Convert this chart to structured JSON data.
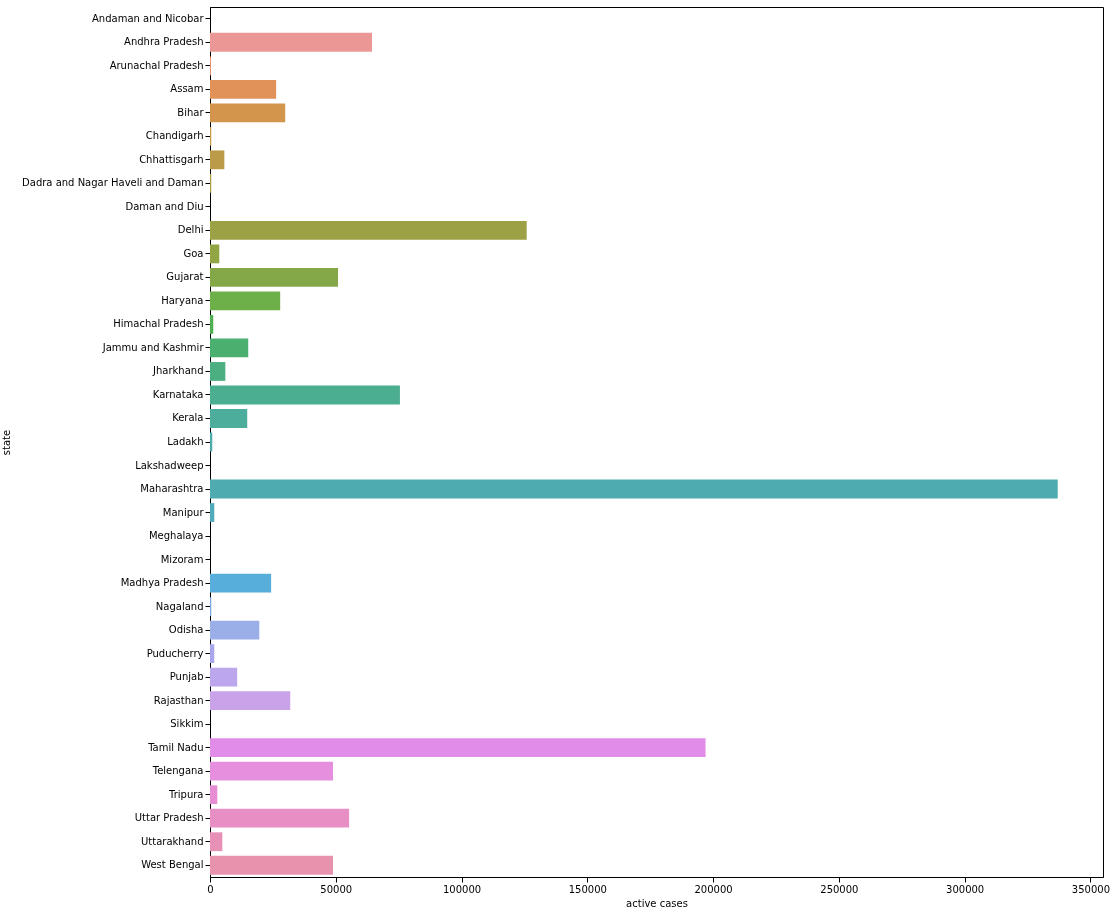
{
  "chart_data": {
    "type": "bar",
    "orientation": "horizontal",
    "xlabel": "active cases",
    "ylabel": "state",
    "categories": [
      "Andaman and Nicobar",
      "Andhra Pradesh",
      "Arunachal Pradesh",
      "Assam",
      "Bihar",
      "Chandigarh",
      "Chhattisgarh",
      "Dadra and Nagar Haveli and Daman",
      "Daman and Diu",
      "Delhi",
      "Goa",
      "Gujarat",
      "Haryana",
      "Himachal Pradesh",
      "Jammu and Kashmir",
      "Jharkhand",
      "Karnataka",
      "Kerala",
      "Ladakh",
      "Lakshadweep",
      "Maharashtra",
      "Manipur",
      "Meghalaya",
      "Mizoram",
      "Madhya Pradesh",
      "Nagaland",
      "Odisha",
      "Puducherry",
      "Punjab",
      "Rajasthan",
      "Sikkim",
      "Tamil Nadu",
      "Telengana",
      "Tripura",
      "Uttar Pradesh",
      "Uttarakhand",
      "West Bengal"
    ],
    "values": [
      0,
      64400,
      400,
      26300,
      29900,
      500,
      5700,
      500,
      0,
      125900,
      3700,
      50900,
      27900,
      1300,
      15200,
      6100,
      75500,
      14800,
      900,
      0,
      337000,
      1700,
      0,
      0,
      24300,
      500,
      19600,
      1700,
      10800,
      31900,
      0,
      197000,
      48900,
      2900,
      55300,
      4900,
      48900
    ],
    "colors": [
      "#eb9a97",
      "#ea9795",
      "#e88e74",
      "#e19259",
      "#d3954c",
      "#c79a45",
      "#bb9b48",
      "#b09e45",
      "#a5a045",
      "#9ca145",
      "#91a545",
      "#84a848",
      "#6daf48",
      "#4fb052",
      "#4baf70",
      "#4baf82",
      "#4bae91",
      "#4dad9d",
      "#4dacaa",
      "#4dabad",
      "#4eabb0",
      "#4faab9",
      "#52a9c6",
      "#55aad3",
      "#57aedb",
      "#7aa8e2",
      "#9aaee7",
      "#a9a7eb",
      "#bda7ec",
      "#c9a2e9",
      "#d897e8",
      "#e08ce8",
      "#e68fde",
      "#e68dd3",
      "#e78fc5",
      "#e891b7",
      "#e893ad"
    ],
    "xlim": [
      0,
      355000
    ],
    "xticks": [
      0,
      50000,
      100000,
      150000,
      200000,
      250000,
      300000,
      350000
    ],
    "grid": false
  }
}
